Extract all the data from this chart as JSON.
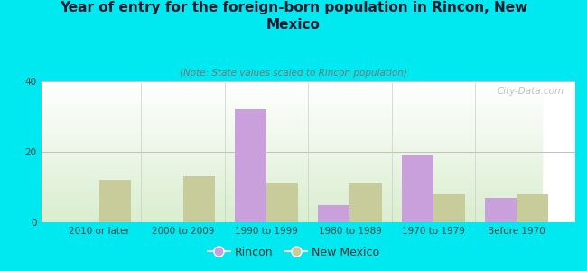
{
  "title": "Year of entry for the foreign-born population in Rincon, New\nMexico",
  "subtitle": "(Note: State values scaled to Rincon population)",
  "categories": [
    "2010 or later",
    "2000 to 2009",
    "1990 to 1999",
    "1980 to 1989",
    "1970 to 1979",
    "Before 1970"
  ],
  "rincon_values": [
    0,
    0,
    32,
    5,
    19,
    7
  ],
  "nm_values": [
    12,
    13,
    11,
    11,
    8,
    8
  ],
  "rincon_color": "#c9a0dc",
  "nm_color": "#c8cc9a",
  "background_color": "#00e8f0",
  "ylim": [
    0,
    40
  ],
  "yticks": [
    0,
    20,
    40
  ],
  "bar_width": 0.38,
  "watermark": "City-Data.com",
  "legend_rincon": "Rincon",
  "legend_nm": "New Mexico",
  "title_fontsize": 11,
  "subtitle_fontsize": 7.5,
  "tick_fontsize": 7.5,
  "legend_fontsize": 9
}
